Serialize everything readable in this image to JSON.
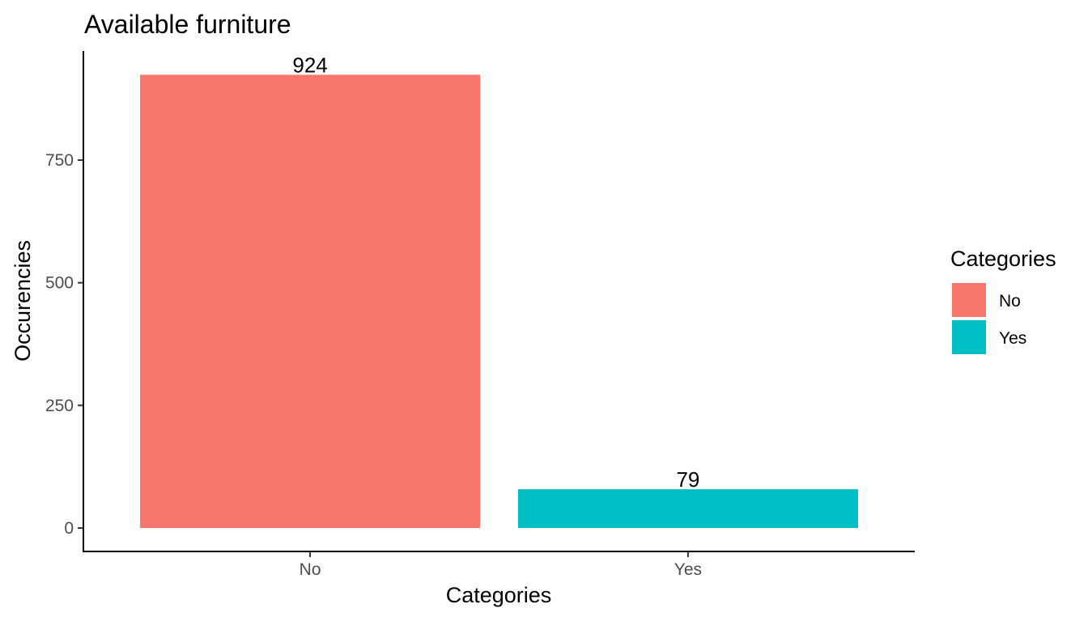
{
  "chart_data": {
    "type": "bar",
    "title": "Available furniture",
    "xlabel": "Categories",
    "ylabel": "Occurencies",
    "categories": [
      "No",
      "Yes"
    ],
    "values": [
      924,
      79
    ],
    "data_labels": [
      "924",
      "79"
    ],
    "colors": [
      "#F8766D",
      "#00BFC4"
    ],
    "ylim": [
      0,
      973
    ],
    "yticks": [
      0,
      250,
      500,
      750
    ],
    "ytick_labels": [
      "0",
      "250",
      "500",
      "750"
    ],
    "grid": false,
    "legend": {
      "title": "Categories",
      "placement": "right",
      "entries": [
        {
          "label": "No",
          "color": "#F8766D"
        },
        {
          "label": "Yes",
          "color": "#00BFC4"
        }
      ]
    }
  }
}
